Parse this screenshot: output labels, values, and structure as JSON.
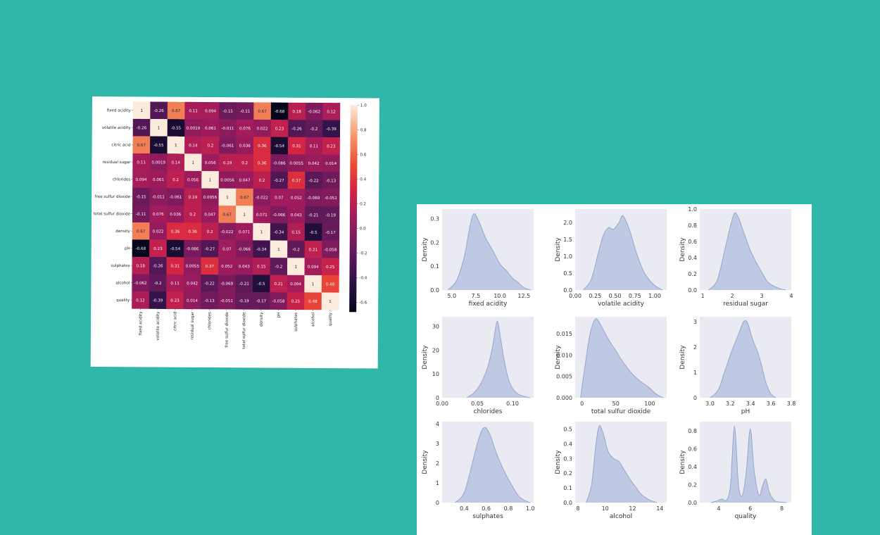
{
  "chart_data": [
    {
      "type": "heatmap",
      "title": "",
      "variables": [
        "fixed acidity",
        "volatile acidity",
        "citric acid",
        "residual sugar",
        "chlorides",
        "free sulfur dioxide",
        "total sulfur dioxide",
        "density",
        "pH",
        "sulphates",
        "alcohol",
        "quality"
      ],
      "matrix": [
        [
          "1",
          "-0.26",
          "0.67",
          "0.11",
          "0.094",
          "-0.15",
          "-0.11",
          "0.67",
          "-0.68",
          "0.18",
          "-0.062",
          "0.12"
        ],
        [
          "-0.26",
          "1",
          "-0.55",
          "0.0019",
          "0.061",
          "-0.011",
          "0.076",
          "0.022",
          "0.23",
          "-0.26",
          "-0.2",
          "-0.39"
        ],
        [
          "0.67",
          "-0.55",
          "1",
          "0.14",
          "0.2",
          "-0.061",
          "0.036",
          "0.36",
          "-0.54",
          "0.31",
          "0.11",
          "0.23"
        ],
        [
          "0.11",
          "0.0019",
          "0.14",
          "1",
          "0.056",
          "0.19",
          "0.2",
          "0.36",
          "-0.086",
          "0.0055",
          "0.042",
          "0.014"
        ],
        [
          "0.094",
          "0.061",
          "0.2",
          "0.056",
          "1",
          "0.0056",
          "0.047",
          "0.2",
          "-0.27",
          "0.37",
          "-0.22",
          "-0.13"
        ],
        [
          "-0.15",
          "-0.011",
          "-0.061",
          "0.19",
          "0.0056",
          "1",
          "0.67",
          "-0.022",
          "0.07",
          "0.052",
          "-0.069",
          "-0.051"
        ],
        [
          "-0.11",
          "0.076",
          "0.036",
          "0.2",
          "0.047",
          "0.67",
          "1",
          "0.071",
          "-0.066",
          "0.043",
          "-0.21",
          "-0.19"
        ],
        [
          "0.67",
          "0.022",
          "0.36",
          "0.36",
          "0.2",
          "-0.022",
          "0.071",
          "1",
          "-0.34",
          "0.15",
          "-0.5",
          "-0.17"
        ],
        [
          "-0.68",
          "0.23",
          "-0.54",
          "-0.086",
          "-0.27",
          "0.07",
          "-0.066",
          "-0.34",
          "1",
          "-0.2",
          "0.21",
          "-0.058"
        ],
        [
          "0.18",
          "-0.26",
          "0.31",
          "0.0055",
          "0.37",
          "0.052",
          "0.043",
          "0.15",
          "-0.2",
          "1",
          "0.094",
          "0.25"
        ],
        [
          "-0.062",
          "-0.2",
          "0.11",
          "0.042",
          "-0.22",
          "-0.069",
          "-0.21",
          "-0.5",
          "0.21",
          "0.094",
          "1",
          "0.48"
        ],
        [
          "0.12",
          "-0.39",
          "0.23",
          "0.014",
          "-0.13",
          "-0.051",
          "-0.19",
          "-0.17",
          "-0.058",
          "0.25",
          "0.48",
          "1"
        ]
      ],
      "colorbar": {
        "range": [
          -0.68,
          1.0
        ],
        "ticks": [
          "1.0",
          "0.8",
          "0.6",
          "0.4",
          "0.2",
          "0.0",
          "-0.2",
          "-0.4",
          "-0.6"
        ]
      }
    },
    {
      "type": "area",
      "title": "",
      "ylabel": "Density",
      "plot_background": "#eaeaf2",
      "fill_color": "#b9c3e0",
      "line_color": "#97a6cf",
      "subplots": [
        {
          "xlabel": "fixed acidity",
          "xlim": [
            4,
            13.5
          ],
          "ylim": [
            0,
            0.34
          ],
          "xticks": [
            "5.0",
            "7.5",
            "10.0",
            "12.5"
          ],
          "yticks": [
            "0.0",
            "0.1",
            "0.2",
            "0.3"
          ],
          "curve": [
            [
              4.6,
              0
            ],
            [
              5.5,
              0.04
            ],
            [
              6.3,
              0.14
            ],
            [
              6.9,
              0.27
            ],
            [
              7.3,
              0.32
            ],
            [
              7.8,
              0.29
            ],
            [
              8.5,
              0.22
            ],
            [
              9.2,
              0.17
            ],
            [
              10.0,
              0.11
            ],
            [
              10.7,
              0.08
            ],
            [
              11.3,
              0.05
            ],
            [
              11.8,
              0.035
            ],
            [
              12.5,
              0.01
            ],
            [
              13.2,
              0
            ]
          ]
        },
        {
          "xlabel": "volatile acidity",
          "xlim": [
            0.0,
            1.15
          ],
          "ylim": [
            0,
            2.4
          ],
          "xticks": [
            "0.00",
            "0.25",
            "0.50",
            "0.75",
            "1.00"
          ],
          "yticks": [
            "0.0",
            "0.5",
            "1.0",
            "1.5",
            "2.0"
          ],
          "curve": [
            [
              0.1,
              0
            ],
            [
              0.2,
              0.3
            ],
            [
              0.28,
              1.0
            ],
            [
              0.35,
              1.6
            ],
            [
              0.42,
              1.85
            ],
            [
              0.48,
              1.8
            ],
            [
              0.55,
              2.0
            ],
            [
              0.6,
              2.2
            ],
            [
              0.68,
              1.8
            ],
            [
              0.77,
              1.1
            ],
            [
              0.86,
              0.55
            ],
            [
              0.95,
              0.25
            ],
            [
              1.02,
              0.1
            ],
            [
              1.1,
              0
            ]
          ]
        },
        {
          "xlabel": "residual sugar",
          "xlim": [
            0.9,
            4.0
          ],
          "ylim": [
            0,
            1.0
          ],
          "xticks": [
            "1",
            "2",
            "3",
            "4"
          ],
          "yticks": [
            "0.0",
            "0.2",
            "0.4",
            "0.6",
            "0.8",
            "1.0"
          ],
          "curve": [
            [
              1.2,
              0
            ],
            [
              1.5,
              0.13
            ],
            [
              1.8,
              0.58
            ],
            [
              2.05,
              0.93
            ],
            [
              2.2,
              0.9
            ],
            [
              2.4,
              0.7
            ],
            [
              2.6,
              0.5
            ],
            [
              2.8,
              0.35
            ],
            [
              3.0,
              0.22
            ],
            [
              3.2,
              0.1
            ],
            [
              3.4,
              0.05
            ],
            [
              3.6,
              0.02
            ],
            [
              3.8,
              0
            ]
          ]
        },
        {
          "xlabel": "chlorides",
          "xlim": [
            0.0,
            0.13
          ],
          "ylim": [
            0,
            34
          ],
          "xticks": [
            "0.00",
            "0.05",
            "0.10"
          ],
          "yticks": [
            "0",
            "10",
            "20",
            "30"
          ],
          "curve": [
            [
              0.035,
              0
            ],
            [
              0.045,
              2
            ],
            [
              0.055,
              6
            ],
            [
              0.065,
              13
            ],
            [
              0.072,
              22
            ],
            [
              0.078,
              32
            ],
            [
              0.083,
              25
            ],
            [
              0.088,
              16
            ],
            [
              0.094,
              8
            ],
            [
              0.1,
              4
            ],
            [
              0.108,
              1.5
            ],
            [
              0.12,
              0.3
            ],
            [
              0.125,
              0
            ]
          ]
        },
        {
          "xlabel": "total sulfur dioxide",
          "xlim": [
            -10,
            125
          ],
          "ylim": [
            0,
            0.019
          ],
          "xticks": [
            "0",
            "50",
            "100"
          ],
          "yticks": [
            "0.000",
            "0.005",
            "0.010",
            "0.015"
          ],
          "curve": [
            [
              -2,
              0
            ],
            [
              5,
              0.008
            ],
            [
              12,
              0.015
            ],
            [
              20,
              0.0185
            ],
            [
              28,
              0.017
            ],
            [
              38,
              0.014
            ],
            [
              50,
              0.011
            ],
            [
              60,
              0.0085
            ],
            [
              72,
              0.006
            ],
            [
              85,
              0.004
            ],
            [
              98,
              0.0025
            ],
            [
              110,
              0.0008
            ],
            [
              120,
              0
            ]
          ]
        },
        {
          "xlabel": "pH",
          "xlim": [
            2.9,
            3.8
          ],
          "ylim": [
            0,
            3.2
          ],
          "xticks": [
            "3.0",
            "3.2",
            "3.4",
            "3.6",
            "3.8"
          ],
          "yticks": [
            "0",
            "1",
            "2",
            "3"
          ],
          "curve": [
            [
              3.0,
              0
            ],
            [
              3.08,
              0.3
            ],
            [
              3.15,
              1.1
            ],
            [
              3.22,
              1.9
            ],
            [
              3.28,
              2.5
            ],
            [
              3.33,
              3.0
            ],
            [
              3.37,
              2.95
            ],
            [
              3.42,
              2.3
            ],
            [
              3.46,
              1.9
            ],
            [
              3.5,
              1.4
            ],
            [
              3.55,
              0.6
            ],
            [
              3.6,
              0.15
            ],
            [
              3.65,
              0
            ]
          ]
        },
        {
          "xlabel": "sulphates",
          "xlim": [
            0.2,
            1.03
          ],
          "ylim": [
            0,
            4.1
          ],
          "xticks": [
            "0.4",
            "0.6",
            "0.8",
            "1.0"
          ],
          "yticks": [
            "0",
            "1",
            "2",
            "3",
            "4"
          ],
          "curve": [
            [
              0.32,
              0
            ],
            [
              0.4,
              0.5
            ],
            [
              0.47,
              1.9
            ],
            [
              0.53,
              3.2
            ],
            [
              0.58,
              3.8
            ],
            [
              0.63,
              3.5
            ],
            [
              0.68,
              2.7
            ],
            [
              0.73,
              2.0
            ],
            [
              0.78,
              1.4
            ],
            [
              0.84,
              0.8
            ],
            [
              0.9,
              0.3
            ],
            [
              0.96,
              0.08
            ],
            [
              1.0,
              0
            ]
          ]
        },
        {
          "xlabel": "alcohol",
          "xlim": [
            7.8,
            14.5
          ],
          "ylim": [
            0,
            0.55
          ],
          "xticks": [
            "8",
            "10",
            "12",
            "14"
          ],
          "yticks": [
            "0.0",
            "0.1",
            "0.2",
            "0.3",
            "0.4",
            "0.5"
          ],
          "curve": [
            [
              8.6,
              0
            ],
            [
              9.0,
              0.12
            ],
            [
              9.3,
              0.38
            ],
            [
              9.55,
              0.52
            ],
            [
              9.85,
              0.47
            ],
            [
              10.2,
              0.35
            ],
            [
              10.6,
              0.3
            ],
            [
              11.0,
              0.28
            ],
            [
              11.4,
              0.22
            ],
            [
              11.8,
              0.16
            ],
            [
              12.2,
              0.11
            ],
            [
              12.6,
              0.06
            ],
            [
              13.2,
              0.02
            ],
            [
              13.8,
              0
            ]
          ]
        },
        {
          "xlabel": "quality",
          "xlim": [
            2.8,
            8.6
          ],
          "ylim": [
            0,
            0.9
          ],
          "xticks": [
            "4",
            "6",
            "8"
          ],
          "yticks": [
            "0.0",
            "0.2",
            "0.4",
            "0.6",
            "0.8"
          ],
          "curve": [
            [
              3.5,
              0
            ],
            [
              3.9,
              0.02
            ],
            [
              4.2,
              0.04
            ],
            [
              4.5,
              0.03
            ],
            [
              4.75,
              0.2
            ],
            [
              5.0,
              0.85
            ],
            [
              5.25,
              0.2
            ],
            [
              5.5,
              0.08
            ],
            [
              5.75,
              0.35
            ],
            [
              6.0,
              0.82
            ],
            [
              6.25,
              0.35
            ],
            [
              6.55,
              0.08
            ],
            [
              6.8,
              0.2
            ],
            [
              7.0,
              0.26
            ],
            [
              7.2,
              0.12
            ],
            [
              7.55,
              0.02
            ],
            [
              8.0,
              0.005
            ],
            [
              8.3,
              0
            ]
          ]
        }
      ]
    }
  ]
}
